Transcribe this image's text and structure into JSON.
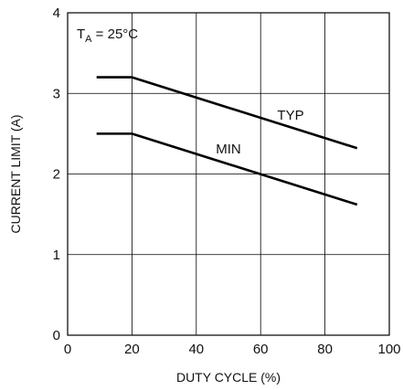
{
  "chart_data": {
    "type": "line",
    "title": "",
    "xlabel": "DUTY CYCLE (%)",
    "ylabel": "CURRENT LIMIT (A)",
    "xlim": [
      0,
      100
    ],
    "ylim": [
      0,
      4
    ],
    "x_ticks": [
      "0",
      "20",
      "40",
      "60",
      "80",
      "100"
    ],
    "y_ticks": [
      "0",
      "1",
      "2",
      "3",
      "4"
    ],
    "grid": true,
    "annotation": {
      "main": "T",
      "sub": "A",
      "rest": " = 25°C"
    },
    "series": [
      {
        "name": "TYP",
        "x": [
          9,
          20,
          90
        ],
        "y": [
          3.2,
          3.2,
          2.32
        ]
      },
      {
        "name": "MIN",
        "x": [
          9,
          20,
          90
        ],
        "y": [
          2.5,
          2.5,
          1.62
        ]
      }
    ],
    "line_color": "#000000",
    "grid_color": "#000000"
  }
}
